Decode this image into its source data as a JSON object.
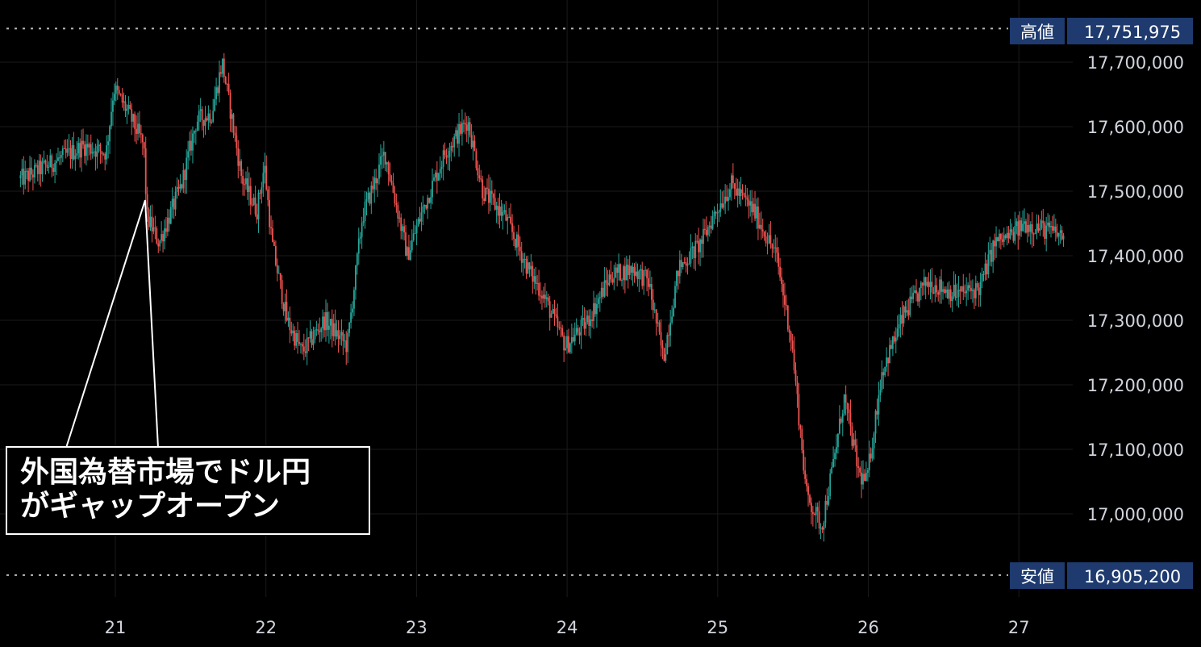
{
  "chart_data": {
    "type": "candlestick",
    "x_ticks": [
      "21",
      "22",
      "23",
      "24",
      "25",
      "26",
      "27"
    ],
    "y_ticks": [
      "17,700,000",
      "17,600,000",
      "17,500,000",
      "17,400,000",
      "17,300,000",
      "17,200,000",
      "17,100,000",
      "17,000,000"
    ],
    "ylim": [
      16880000,
      17800000
    ],
    "high": {
      "label": "高値",
      "value": "17,751,975",
      "num": 17751975
    },
    "low": {
      "label": "安値",
      "value": "16,905,200",
      "num": 16905200
    },
    "annotation": {
      "line1": "外国為替市場でドル円",
      "line2": "がギャップオープン"
    },
    "trend": [
      [
        20.4,
        17520000
      ],
      [
        20.6,
        17545000
      ],
      [
        20.8,
        17570000
      ],
      [
        20.95,
        17560000
      ],
      [
        21.0,
        17660000
      ],
      [
        21.1,
        17620000
      ],
      [
        21.2,
        17570000
      ],
      [
        21.22,
        17460000
      ],
      [
        21.3,
        17420000
      ],
      [
        21.45,
        17510000
      ],
      [
        21.55,
        17610000
      ],
      [
        21.65,
        17620000
      ],
      [
        21.72,
        17700000
      ],
      [
        21.85,
        17520000
      ],
      [
        21.95,
        17470000
      ],
      [
        22.0,
        17540000
      ],
      [
        22.05,
        17420000
      ],
      [
        22.15,
        17300000
      ],
      [
        22.25,
        17250000
      ],
      [
        22.4,
        17300000
      ],
      [
        22.55,
        17260000
      ],
      [
        22.65,
        17460000
      ],
      [
        22.8,
        17560000
      ],
      [
        22.95,
        17400000
      ],
      [
        23.05,
        17470000
      ],
      [
        23.2,
        17560000
      ],
      [
        23.35,
        17610000
      ],
      [
        23.45,
        17500000
      ],
      [
        23.6,
        17460000
      ],
      [
        23.75,
        17380000
      ],
      [
        23.85,
        17340000
      ],
      [
        24.0,
        17260000
      ],
      [
        24.15,
        17300000
      ],
      [
        24.3,
        17370000
      ],
      [
        24.45,
        17380000
      ],
      [
        24.55,
        17360000
      ],
      [
        24.65,
        17240000
      ],
      [
        24.75,
        17380000
      ],
      [
        24.9,
        17420000
      ],
      [
        25.0,
        17470000
      ],
      [
        25.1,
        17510000
      ],
      [
        25.25,
        17470000
      ],
      [
        25.4,
        17400000
      ],
      [
        25.5,
        17270000
      ],
      [
        25.6,
        17030000
      ],
      [
        25.7,
        16980000
      ],
      [
        25.78,
        17080000
      ],
      [
        25.85,
        17180000
      ],
      [
        25.95,
        17060000
      ],
      [
        26.0,
        17050000
      ],
      [
        26.1,
        17220000
      ],
      [
        26.25,
        17310000
      ],
      [
        26.4,
        17360000
      ],
      [
        26.5,
        17350000
      ],
      [
        26.6,
        17340000
      ],
      [
        26.75,
        17350000
      ],
      [
        26.85,
        17420000
      ],
      [
        26.95,
        17430000
      ],
      [
        27.05,
        17450000
      ],
      [
        27.2,
        17440000
      ],
      [
        27.3,
        17430000
      ]
    ]
  }
}
